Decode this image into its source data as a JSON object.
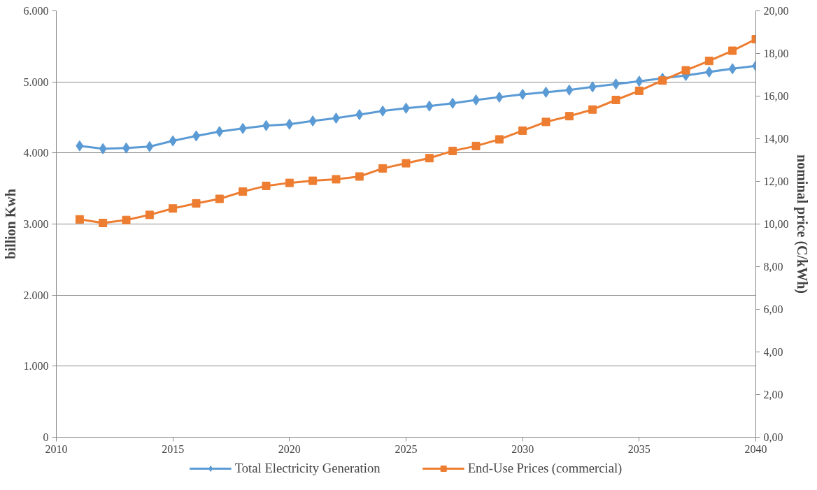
{
  "chart_data": {
    "type": "line",
    "ylabel": "billion Kwh",
    "y2label": "nominal price (C/kWh)",
    "x": [
      2011,
      2012,
      2013,
      2014,
      2015,
      2016,
      2017,
      2018,
      2019,
      2020,
      2021,
      2022,
      2023,
      2024,
      2025,
      2026,
      2027,
      2028,
      2029,
      2030,
      2031,
      2032,
      2033,
      2034,
      2035,
      2036,
      2037,
      2038,
      2039,
      2040
    ],
    "series": [
      {
        "name": "Total Electricity Generation",
        "color": "#5b9bd5",
        "marker": "diamond",
        "values": [
          4100,
          4060,
          4070,
          4090,
          4170,
          4240,
          4300,
          4345,
          4385,
          4405,
          4450,
          4490,
          4540,
          4590,
          4630,
          4660,
          4700,
          4745,
          4785,
          4825,
          4855,
          4885,
          4930,
          4970,
          5010,
          5050,
          5090,
          5140,
          5185,
          5225
        ]
      },
      {
        "name": "End-Use Prices (commercial)",
        "color": "#ed7d31",
        "marker": "square",
        "axis": "y2",
        "values": [
          10.22,
          10.05,
          10.19,
          10.43,
          10.73,
          10.97,
          11.18,
          11.52,
          11.79,
          11.93,
          12.03,
          12.1,
          12.23,
          12.61,
          12.85,
          13.09,
          13.43,
          13.66,
          13.97,
          14.38,
          14.79,
          15.06,
          15.37,
          15.82,
          16.25,
          16.73,
          17.21,
          17.65,
          18.13,
          18.67
        ]
      }
    ],
    "xlim": [
      2010,
      2040
    ],
    "xticks": [
      2010,
      2015,
      2020,
      2025,
      2030,
      2035,
      2040
    ],
    "ylim": [
      0,
      6000
    ],
    "yticks": [
      0,
      {
        "value": 1000,
        "label": "1.000"
      },
      {
        "value": 2000,
        "label": "2.000"
      },
      {
        "value": 3000,
        "label": "3.000"
      },
      {
        "value": 4000,
        "label": "4.000"
      },
      {
        "value": 5000,
        "label": "5.000"
      },
      {
        "value": 6000,
        "label": "6.000"
      }
    ],
    "y2lim": [
      0,
      20
    ],
    "y2ticks": [
      {
        "value": 0,
        "label": "0,00"
      },
      {
        "value": 2,
        "label": "2,00"
      },
      {
        "value": 4,
        "label": "4,00"
      },
      {
        "value": 6,
        "label": "6,00"
      },
      {
        "value": 8,
        "label": "8,00"
      },
      {
        "value": 10,
        "label": "10,00"
      },
      {
        "value": 12,
        "label": "12,00"
      },
      {
        "value": 14,
        "label": "14,00"
      },
      {
        "value": 16,
        "label": "16,00"
      },
      {
        "value": 18,
        "label": "18,00"
      },
      {
        "value": 20,
        "label": "20,00"
      }
    ],
    "grid": "y",
    "legend": "bottom"
  }
}
